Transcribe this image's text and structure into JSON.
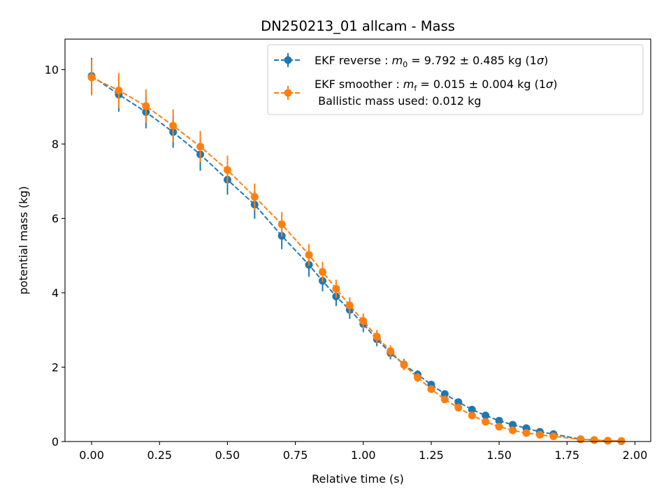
{
  "chart_data": {
    "type": "scatter",
    "title": "DN250213_01 allcam - Mass",
    "xlabel": "Relative time (s)",
    "ylabel": "potential mass (kg)",
    "xlim": [
      -0.098,
      2.058
    ],
    "ylim": [
      0,
      10.82
    ],
    "xticks": [
      0.0,
      0.25,
      0.5,
      0.75,
      1.0,
      1.25,
      1.5,
      1.75,
      2.0
    ],
    "xtick_labels": [
      "0.00",
      "0.25",
      "0.50",
      "0.75",
      "1.00",
      "1.25",
      "1.50",
      "1.75",
      "2.00"
    ],
    "yticks": [
      0,
      2,
      4,
      6,
      8,
      10
    ],
    "ytick_labels": [
      "0",
      "2",
      "4",
      "6",
      "8",
      "10"
    ],
    "grid": false,
    "legend_position": "top-right",
    "series": [
      {
        "name": "EKF reverse",
        "legend_prefix": "EKF reverse : ",
        "legend_symbol": "m",
        "legend_sub": "0",
        "legend_suffix": " =  9.792 ± 0.485 kg (1",
        "legend_sigma": "σ",
        "legend_close": ")",
        "color": "#1f77b4",
        "x": [
          0.0,
          0.1,
          0.2,
          0.3,
          0.4,
          0.5,
          0.6,
          0.7,
          0.8,
          0.85,
          0.9,
          0.95,
          1.0,
          1.05,
          1.1,
          1.15,
          1.2,
          1.25,
          1.3,
          1.35,
          1.4,
          1.45,
          1.5,
          1.55,
          1.6,
          1.65,
          1.7,
          1.8,
          1.85,
          1.9,
          1.95
        ],
        "y": [
          9.83,
          9.33,
          8.86,
          8.32,
          7.72,
          7.04,
          6.37,
          5.53,
          4.75,
          4.32,
          3.9,
          3.54,
          3.16,
          2.75,
          2.38,
          2.07,
          1.8,
          1.53,
          1.28,
          1.06,
          0.86,
          0.7,
          0.56,
          0.45,
          0.36,
          0.26,
          0.2,
          0.06,
          0.04,
          0.02,
          0.01
        ],
        "yerr": [
          0.485,
          0.46,
          0.44,
          0.42,
          0.44,
          0.4,
          0.38,
          0.36,
          0.32,
          0.28,
          0.26,
          0.24,
          0.22,
          0.19,
          0.17,
          0.15,
          0.12,
          0.1,
          0.09,
          0.07,
          0.06,
          0.05,
          0.04,
          0.03,
          0.03,
          0.02,
          0.02,
          0.01,
          0.01,
          0.005,
          0.004
        ]
      },
      {
        "name": "EKF smoother",
        "legend_prefix": "EKF smoother : ",
        "legend_symbol": "m",
        "legend_sub": "f",
        "legend_suffix": " =  0.015 ± 0.004 kg (1",
        "legend_sigma": "σ",
        "legend_close": ")",
        "legend_line2": " Ballistic mass used: 0.012 kg",
        "color": "#ff7f0e",
        "x": [
          0.0,
          0.1,
          0.2,
          0.3,
          0.4,
          0.5,
          0.6,
          0.7,
          0.8,
          0.85,
          0.9,
          0.95,
          1.0,
          1.05,
          1.1,
          1.15,
          1.2,
          1.25,
          1.3,
          1.35,
          1.4,
          1.45,
          1.5,
          1.55,
          1.6,
          1.65,
          1.7,
          1.8,
          1.85,
          1.9,
          1.95
        ],
        "y": [
          9.79,
          9.44,
          9.02,
          8.49,
          7.93,
          7.3,
          6.58,
          5.84,
          5.02,
          4.56,
          4.11,
          3.66,
          3.24,
          2.82,
          2.43,
          2.06,
          1.72,
          1.41,
          1.13,
          0.91,
          0.7,
          0.53,
          0.4,
          0.3,
          0.23,
          0.18,
          0.14,
          0.06,
          0.04,
          0.02,
          0.015
        ],
        "yerr": [
          0.485,
          0.47,
          0.45,
          0.44,
          0.42,
          0.39,
          0.36,
          0.33,
          0.29,
          0.27,
          0.24,
          0.22,
          0.2,
          0.18,
          0.16,
          0.14,
          0.12,
          0.1,
          0.08,
          0.07,
          0.06,
          0.05,
          0.04,
          0.03,
          0.02,
          0.02,
          0.01,
          0.006,
          0.005,
          0.004,
          0.004
        ]
      }
    ]
  }
}
